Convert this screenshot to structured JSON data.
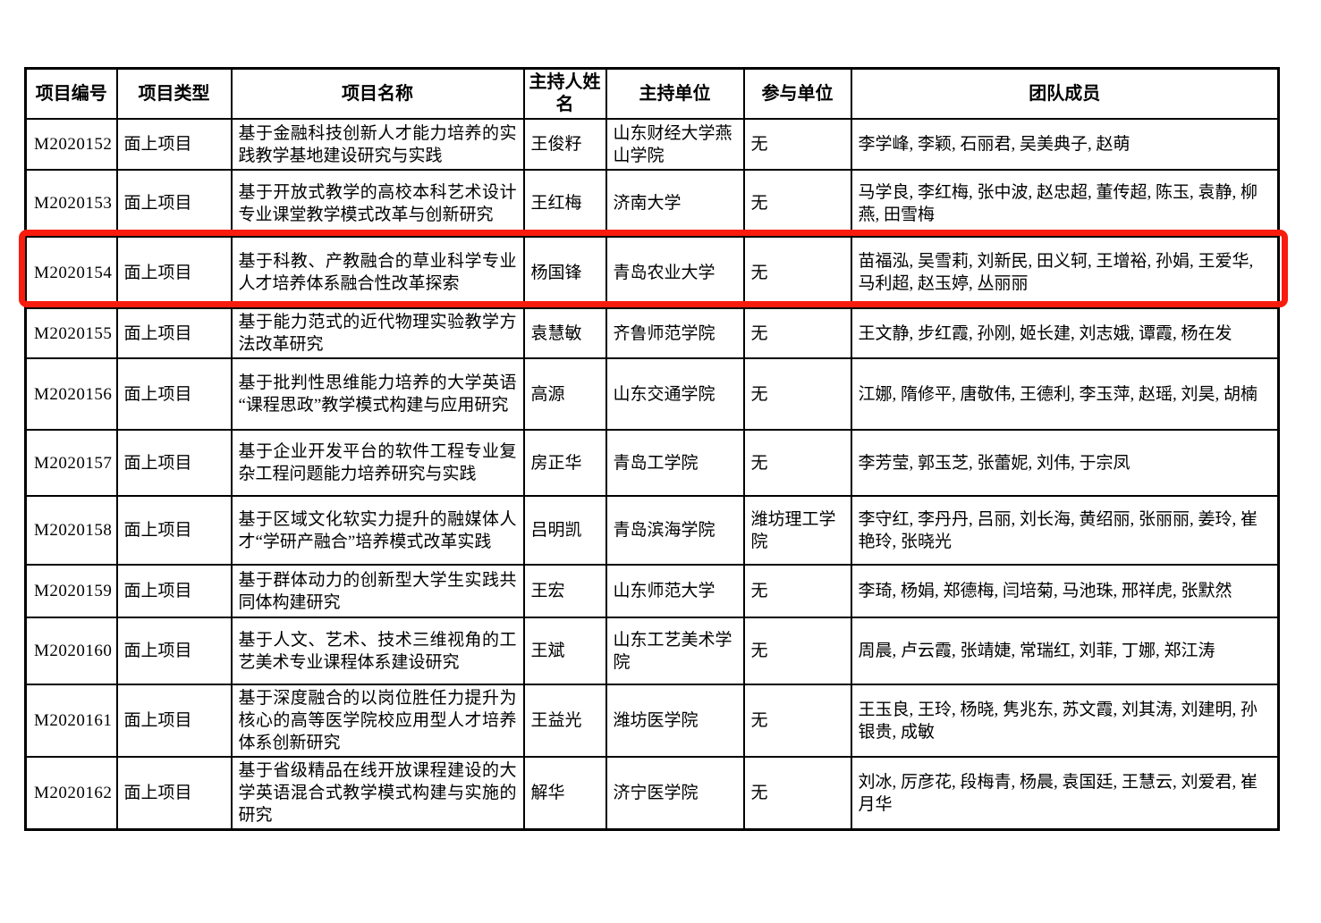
{
  "table": {
    "headers": [
      "项目编号",
      "项目类型",
      "项目名称",
      "主持人姓名",
      "主持单位",
      "参与单位",
      "团队成员"
    ],
    "rows": [
      {
        "id": "M2020152",
        "type": "面上项目",
        "name": "基于金融科技创新人才能力培养的实践教学基地建设研究与实践",
        "leader": "王俊籽",
        "host_unit": "山东财经大学燕山学院",
        "partner_unit": "无",
        "members": "李学峰, 李颖, 石丽君, 吴美典子, 赵萌"
      },
      {
        "id": "M2020153",
        "type": "面上项目",
        "name": "基于开放式教学的高校本科艺术设计专业课堂教学模式改革与创新研究",
        "leader": "王红梅",
        "host_unit": "济南大学",
        "partner_unit": "无",
        "members": "马学良, 李红梅, 张中波, 赵忠超, 董传超, 陈玉, 袁静, 柳燕, 田雪梅"
      },
      {
        "id": "M2020154",
        "type": "面上项目",
        "name": "基于科教、产教融合的草业科学专业人才培养体系融合性改革探索",
        "leader": "杨国锋",
        "host_unit": "青岛农业大学",
        "partner_unit": "无",
        "members": "苗福泓, 吴雪莉, 刘新民, 田义轲, 王增裕, 孙娟, 王爱华, 马利超, 赵玉婷, 丛丽丽"
      },
      {
        "id": "M2020155",
        "type": "面上项目",
        "name": "基于能力范式的近代物理实验教学方法改革研究",
        "leader": "袁慧敏",
        "host_unit": "齐鲁师范学院",
        "partner_unit": "无",
        "members": "王文静, 步红霞, 孙刚, 姬长建, 刘志娥, 谭霞, 杨在发"
      },
      {
        "id": "M2020156",
        "type": "面上项目",
        "name": "基于批判性思维能力培养的大学英语“课程思政”教学模式构建与应用研究",
        "leader": "高源",
        "host_unit": "山东交通学院",
        "partner_unit": "无",
        "members": "江娜, 隋修平, 唐敬伟, 王德利, 李玉萍, 赵瑶, 刘昊, 胡楠"
      },
      {
        "id": "M2020157",
        "type": "面上项目",
        "name": "基于企业开发平台的软件工程专业复杂工程问题能力培养研究与实践",
        "leader": "房正华",
        "host_unit": "青岛工学院",
        "partner_unit": "无",
        "members": "李芳莹, 郭玉芝, 张蕾妮, 刘伟, 于宗凤"
      },
      {
        "id": "M2020158",
        "type": "面上项目",
        "name": "基于区域文化软实力提升的融媒体人才“学研产融合”培养模式改革实践",
        "leader": "吕明凯",
        "host_unit": "青岛滨海学院",
        "partner_unit": "潍坊理工学院",
        "members": "李守红, 李丹丹, 吕丽, 刘长海, 黄绍丽, 张丽丽, 姜玲, 崔艳玲, 张晓光"
      },
      {
        "id": "M2020159",
        "type": "面上项目",
        "name": "基于群体动力的创新型大学生实践共同体构建研究",
        "leader": "王宏",
        "host_unit": "山东师范大学",
        "partner_unit": "无",
        "members": "李琦, 杨娟, 郑德梅, 闫培菊, 马池珠, 邢祥虎, 张默然"
      },
      {
        "id": "M2020160",
        "type": "面上项目",
        "name": "基于人文、艺术、技术三维视角的工艺美术专业课程体系建设研究",
        "leader": "王斌",
        "host_unit": "山东工艺美术学院",
        "partner_unit": "无",
        "members": "周晨, 卢云霞, 张靖婕, 常瑞红, 刘菲, 丁娜, 郑江涛"
      },
      {
        "id": "M2020161",
        "type": "面上项目",
        "name": "基于深度融合的以岗位胜任力提升为核心的高等医学院校应用型人才培养体系创新研究",
        "leader": "王益光",
        "host_unit": "潍坊医学院",
        "partner_unit": "无",
        "members": "王玉良, 王玲, 杨晓, 隽兆东, 苏文霞, 刘其涛, 刘建明, 孙银贵, 成敏"
      },
      {
        "id": "M2020162",
        "type": "面上项目",
        "name": "基于省级精品在线开放课程建设的大学英语混合式教学模式构建与实施的研究",
        "leader": "解华",
        "host_unit": "济宁医学院",
        "partner_unit": "无",
        "members": "刘冰, 厉彦花, 段梅青, 杨晨, 袁国廷, 王慧云, 刘爱君, 崔月华"
      }
    ]
  },
  "highlight": {
    "row_id": "M2020154",
    "color": "#f81c0e"
  }
}
